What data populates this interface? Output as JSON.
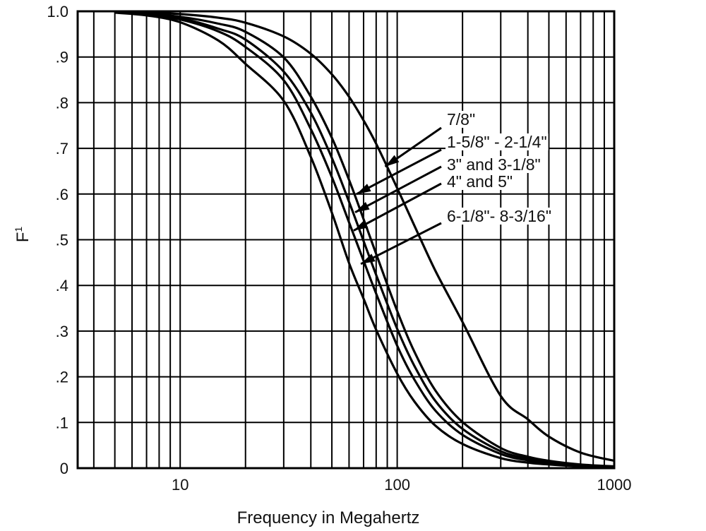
{
  "chart_data": {
    "type": "line",
    "title": "",
    "xlabel": "Frequency in Megahertz",
    "ylabel": "F",
    "ylabel_sup": "1",
    "xscale": "log",
    "xlim": [
      3.37,
      1000
    ],
    "ylim": [
      0,
      1.0
    ],
    "grid": true,
    "x_tick_labels": [
      {
        "value": 10,
        "label": "10"
      },
      {
        "value": 100,
        "label": "100"
      },
      {
        "value": 1000,
        "label": "1000"
      }
    ],
    "y_tick_labels": [
      {
        "value": 0,
        "label": "0"
      },
      {
        "value": 0.1,
        "label": ".1"
      },
      {
        "value": 0.2,
        "label": ".2"
      },
      {
        "value": 0.3,
        "label": ".3"
      },
      {
        "value": 0.4,
        "label": ".4"
      },
      {
        "value": 0.5,
        "label": ".5"
      },
      {
        "value": 0.6,
        "label": ".6"
      },
      {
        "value": 0.7,
        "label": ".7"
      },
      {
        "value": 0.8,
        "label": ".8"
      },
      {
        "value": 0.9,
        "label": ".9"
      },
      {
        "value": 1.0,
        "label": "1.0"
      }
    ],
    "x_grid_values": [
      4,
      5,
      6,
      7,
      8,
      9,
      10,
      20,
      30,
      40,
      50,
      60,
      70,
      80,
      90,
      100,
      200,
      300,
      400,
      500,
      600,
      700,
      800,
      900
    ],
    "y_grid_values": [
      0.1,
      0.2,
      0.3,
      0.4,
      0.5,
      0.6,
      0.7,
      0.8,
      0.9
    ],
    "x": [
      5,
      7,
      10,
      15,
      20,
      30,
      40,
      50,
      60,
      70,
      80,
      100,
      120,
      150,
      200,
      300,
      400,
      500,
      700,
      1000
    ],
    "series": [
      {
        "name": "7/8\"",
        "values": [
          0.999,
          0.997,
          0.994,
          0.986,
          0.975,
          0.945,
          0.907,
          0.862,
          0.813,
          0.761,
          0.71,
          0.613,
          0.531,
          0.432,
          0.32,
          0.158,
          0.107,
          0.069,
          0.034,
          0.016
        ]
      },
      {
        "name": "1-5/8\" - 2-1/4\"",
        "values": [
          0.998,
          0.995,
          0.988,
          0.973,
          0.955,
          0.899,
          0.813,
          0.723,
          0.631,
          0.545,
          0.469,
          0.344,
          0.255,
          0.17,
          0.101,
          0.044,
          0.025,
          0.016,
          0.008,
          0.004
        ]
      },
      {
        "name": "3\" and 3-1/8\"",
        "values": [
          0.998,
          0.994,
          0.985,
          0.962,
          0.938,
          0.868,
          0.778,
          0.679,
          0.583,
          0.497,
          0.423,
          0.305,
          0.224,
          0.147,
          0.086,
          0.037,
          0.021,
          0.013,
          0.006,
          0.003
        ]
      },
      {
        "name": "4\" and 5\"",
        "values": [
          0.998,
          0.993,
          0.982,
          0.956,
          0.922,
          0.849,
          0.742,
          0.637,
          0.538,
          0.454,
          0.382,
          0.268,
          0.194,
          0.126,
          0.073,
          0.031,
          0.017,
          0.011,
          0.005,
          0.002
        ]
      },
      {
        "name": "6-1/8\"- 8-3/16\"",
        "values": [
          0.997,
          0.991,
          0.976,
          0.936,
          0.885,
          0.804,
          0.681,
          0.559,
          0.449,
          0.371,
          0.303,
          0.207,
          0.146,
          0.093,
          0.053,
          0.022,
          0.012,
          0.008,
          0.004,
          0.002
        ]
      }
    ],
    "annotations": [
      {
        "text": "7/8\"",
        "series": 0,
        "arrow_to": [
          88,
          0.66
        ]
      },
      {
        "text": "1-5/8\" - 2-1/4\"",
        "series": 1,
        "arrow_to": [
          65,
          0.6
        ]
      },
      {
        "text": "3\" and 3-1/8\"",
        "series": 2,
        "arrow_to": [
          64,
          0.56
        ]
      },
      {
        "text": "4\" and 5\"",
        "series": 3,
        "arrow_to": [
          63,
          0.52
        ]
      },
      {
        "text": "6-1/8\"- 8-3/16\"",
        "series": 4,
        "arrow_to": [
          68,
          0.447
        ]
      }
    ]
  }
}
